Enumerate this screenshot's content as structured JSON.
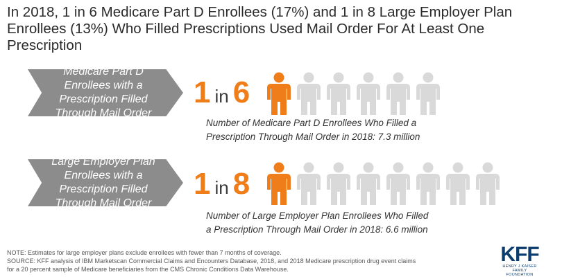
{
  "title": "In 2018, 1 in 6 Medicare Part D Enrollees (17%) and 1 in 8 Large Employer Plan Enrollees (13%) Who Filled Prescriptions Used Mail Order For At Least One Prescription",
  "colors": {
    "highlight": "#ef7d1a",
    "muted": "#d9d9d9",
    "banner": "#8c8c8c",
    "logo": "#0b3d6e"
  },
  "rows": [
    {
      "banner": "Medicare Part D Enrollees with a Prescription Filled Through Mail Order",
      "numerator": "1",
      "word": "in",
      "denominator": "6",
      "icon_count": 6,
      "highlighted": 1,
      "description_line1": "Number of Medicare Part D Enrollees Who Filled a",
      "description_line2": "Prescription Through Mail Order in 2018: 7.3 million"
    },
    {
      "banner": "Large Employer Plan Enrollees with a Prescription Filled Through Mail Order",
      "numerator": "1",
      "word": "in",
      "denominator": "8",
      "icon_count": 8,
      "highlighted": 1,
      "description_line1": "Number of Large Employer Plan Enrollees Who Filled",
      "description_line2": "a Prescription Through Mail Order in 2018: 6.6 million"
    }
  ],
  "footer": {
    "note": "NOTE: Estimates for large employer plans exclude enrollees with fewer than 7 months of coverage.",
    "source_line1": "SOURCE: KFF analysis of IBM Marketscan Commercial Claims and Encounters Database, 2018, and 2018 Medicare prescription drug event claims",
    "source_line2": "for a 20 percent sample of Medicare beneficiaries from the CMS Chronic Conditions Data Warehouse."
  },
  "logo": {
    "name": "KFF",
    "sub1": "HENRY J KAISER",
    "sub2": "FAMILY FOUNDATION"
  },
  "icons": {
    "person": "person-icon"
  }
}
